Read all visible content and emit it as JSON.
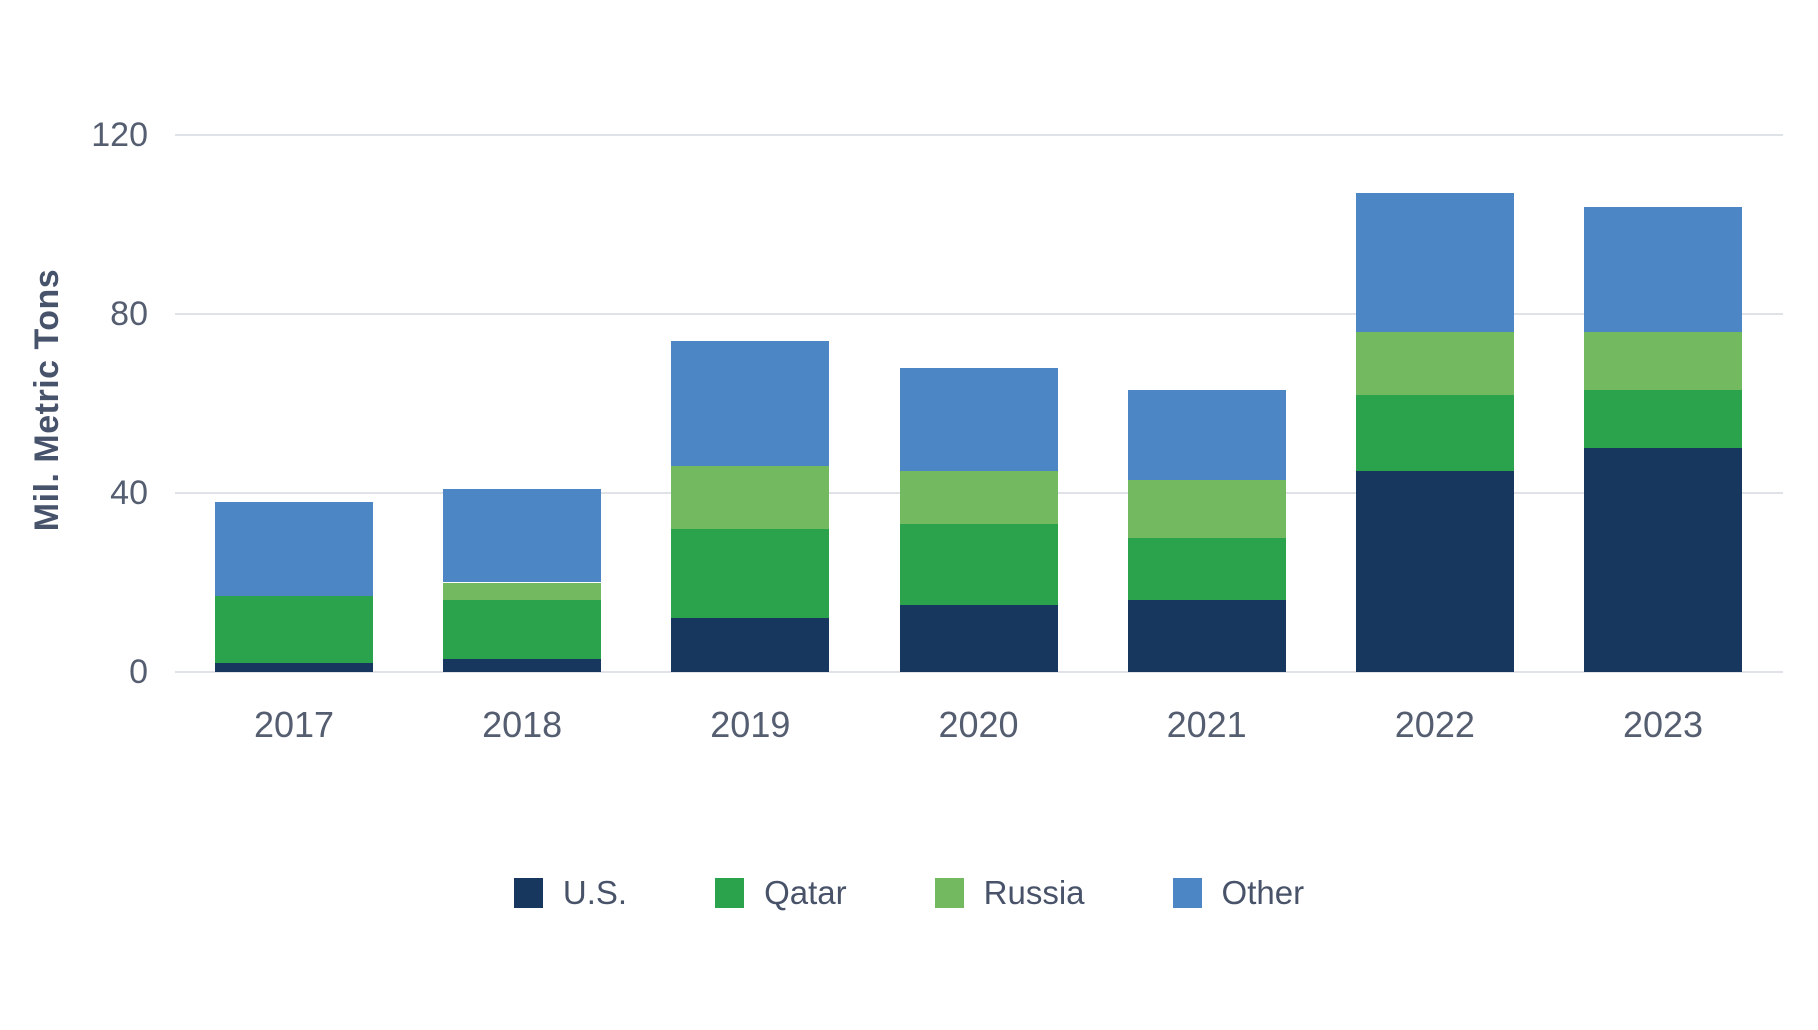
{
  "chart_data": {
    "type": "bar",
    "stacked": true,
    "ylabel": "Mil. Metric Tons",
    "xlabel": "",
    "categories": [
      "2017",
      "2018",
      "2019",
      "2020",
      "2021",
      "2022",
      "2023"
    ],
    "series": [
      {
        "name": "U.S.",
        "color": "#17375e",
        "values": [
          2,
          3,
          12,
          15,
          16,
          45,
          50
        ]
      },
      {
        "name": "Qatar",
        "color": "#2ba24c",
        "values": [
          15,
          13,
          20,
          18,
          14,
          17,
          13
        ]
      },
      {
        "name": "Russia",
        "color": "#73b95f",
        "values": [
          0,
          4,
          14,
          12,
          13,
          14,
          13
        ]
      },
      {
        "name": "Other",
        "color": "#4c86c5",
        "values": [
          21,
          21,
          28,
          23,
          20,
          31,
          28
        ]
      }
    ],
    "totals": [
      38,
      41,
      74,
      68,
      63,
      107,
      104
    ],
    "yticks": [
      0,
      40,
      80,
      120
    ],
    "ylim": [
      0,
      120
    ],
    "grid": true,
    "gridline_color": "#dfe2e6",
    "axis_text_color": "#555e70",
    "legend_position": "bottom"
  }
}
